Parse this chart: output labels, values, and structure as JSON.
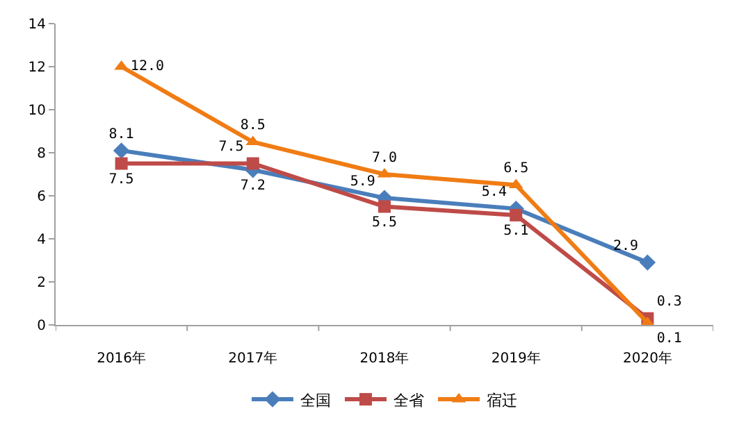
{
  "chart_data": {
    "type": "line",
    "categories": [
      "2016年",
      "2017年",
      "2018年",
      "2019年",
      "2020年"
    ],
    "series": [
      {
        "name": "全国",
        "color": "#4a7ebb",
        "marker": "diamond",
        "values": [
          8.1,
          7.2,
          5.9,
          5.4,
          2.9
        ],
        "value_labels": [
          "8.1",
          "7.2",
          "5.9",
          "5.4",
          "2.9"
        ]
      },
      {
        "name": "全省",
        "color": "#be4b48",
        "marker": "square",
        "values": [
          7.5,
          7.5,
          5.5,
          5.1,
          0.3
        ],
        "value_labels": [
          "7.5",
          "7.5",
          "5.5",
          "5.1",
          "0.3"
        ]
      },
      {
        "name": "宿迁",
        "color": "#f07c14",
        "marker": "triangle",
        "values": [
          12.0,
          8.5,
          7.0,
          6.5,
          0.1
        ],
        "value_labels": [
          "12.0",
          "8.5",
          "7.0",
          "6.5",
          "0.1"
        ]
      }
    ],
    "ylim": [
      0,
      14
    ],
    "yticks": [
      0,
      2,
      4,
      6,
      8,
      10,
      12,
      14
    ],
    "legend": "bottom",
    "line_style": "solid"
  }
}
